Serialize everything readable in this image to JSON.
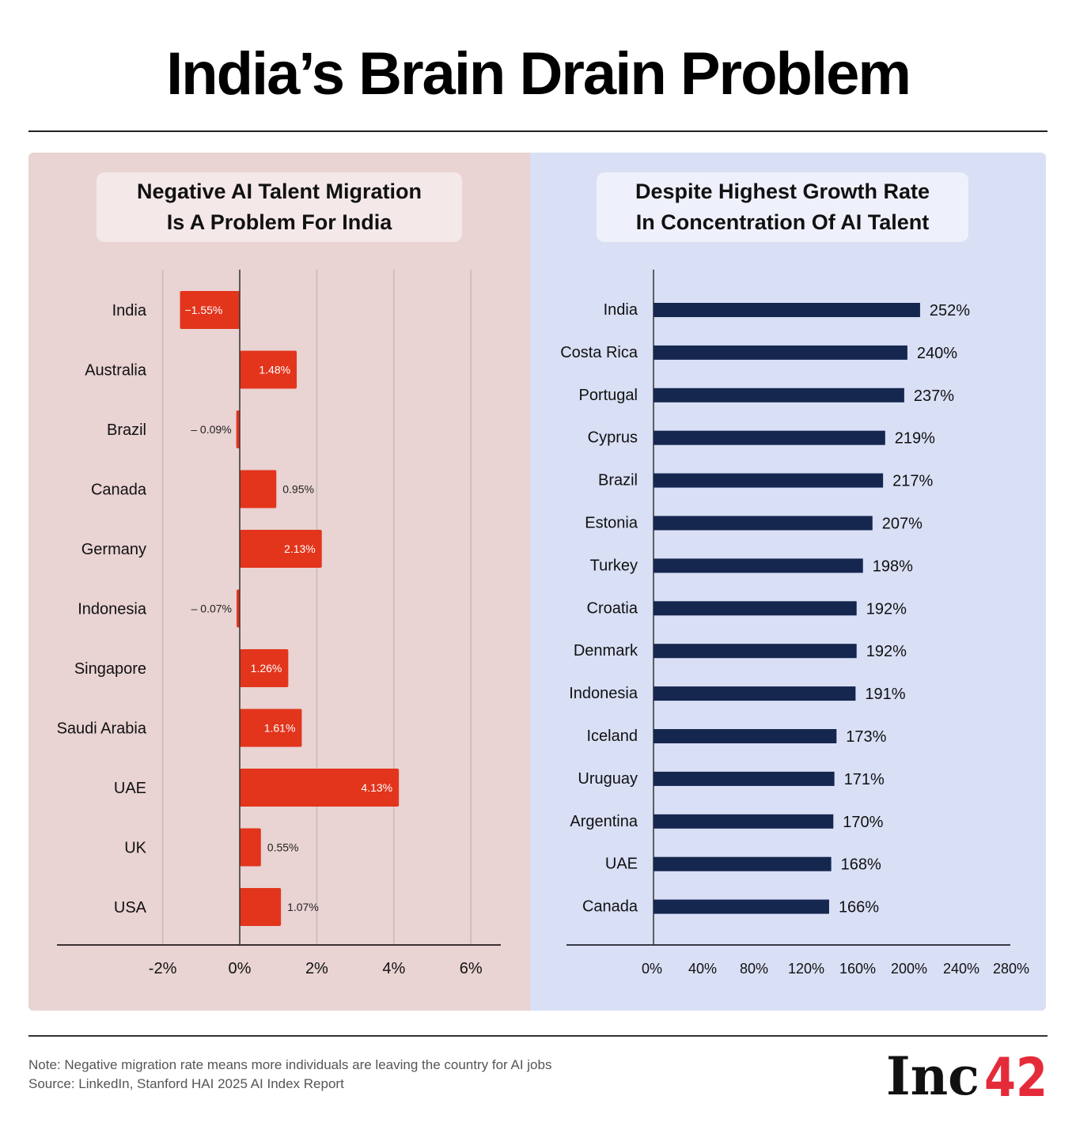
{
  "title": "India’s Brain Drain Problem",
  "colors": {
    "red_bar": "#e2351c",
    "navy_bar": "#15264f",
    "left_bg": "#e9d3d3",
    "right_bg": "#d9dff5"
  },
  "chart_data": [
    {
      "type": "bar",
      "orientation": "horizontal",
      "title_lines": [
        "Negative AI Talent Migration",
        "Is A Problem For India"
      ],
      "categories": [
        "India",
        "Australia",
        "Brazil",
        "Canada",
        "Germany",
        "Indonesia",
        "Singapore",
        "Saudi Arabia",
        "UAE",
        "UK",
        "USA"
      ],
      "values": [
        -1.55,
        1.48,
        -0.09,
        0.95,
        2.13,
        -0.07,
        1.26,
        1.61,
        4.13,
        0.55,
        1.07
      ],
      "value_labels": [
        "−1.55%",
        "1.48%",
        "– 0.09%",
        "0.95%",
        "2.13%",
        "– 0.07%",
        "1.26%",
        "1.61%",
        "4.13%",
        "0.55%",
        "1.07%"
      ],
      "xlim": [
        -4.5,
        6.8
      ],
      "xticks": [
        -2,
        0,
        2,
        4,
        6
      ],
      "xtick_labels": [
        "-2%",
        "0%",
        "2%",
        "4%",
        "6%"
      ],
      "grid": true
    },
    {
      "type": "bar",
      "orientation": "horizontal",
      "title_lines": [
        "Despite Highest Growth Rate",
        "In Concentration Of AI Talent"
      ],
      "categories": [
        "India",
        "Costa Rica",
        "Portugal",
        "Cyprus",
        "Brazil",
        "Estonia",
        "Turkey",
        "Croatia",
        "Denmark",
        "Indonesia",
        "Iceland",
        "Uruguay",
        "Argentina",
        "UAE",
        "Canada"
      ],
      "values": [
        252,
        240,
        237,
        219,
        217,
        207,
        198,
        192,
        192,
        191,
        173,
        171,
        170,
        168,
        166
      ],
      "value_labels": [
        "252%",
        "240%",
        "237%",
        "219%",
        "217%",
        "207%",
        "198%",
        "192%",
        "192%",
        "191%",
        "173%",
        "171%",
        "170%",
        "168%",
        "166%"
      ],
      "xticks": [
        0,
        40,
        80,
        120,
        160,
        200,
        240,
        280
      ],
      "xtick_labels": [
        "0%",
        "40%",
        "80%",
        "120%",
        "160%",
        "200%",
        "240%",
        "280%"
      ],
      "grid": false
    }
  ],
  "footer": {
    "note": "Note: Negative migration rate means more individuals are leaving the country for AI jobs",
    "source": "Source: LinkedIn, Stanford HAI 2025 AI Index Report",
    "logo_text": "Inc42"
  }
}
